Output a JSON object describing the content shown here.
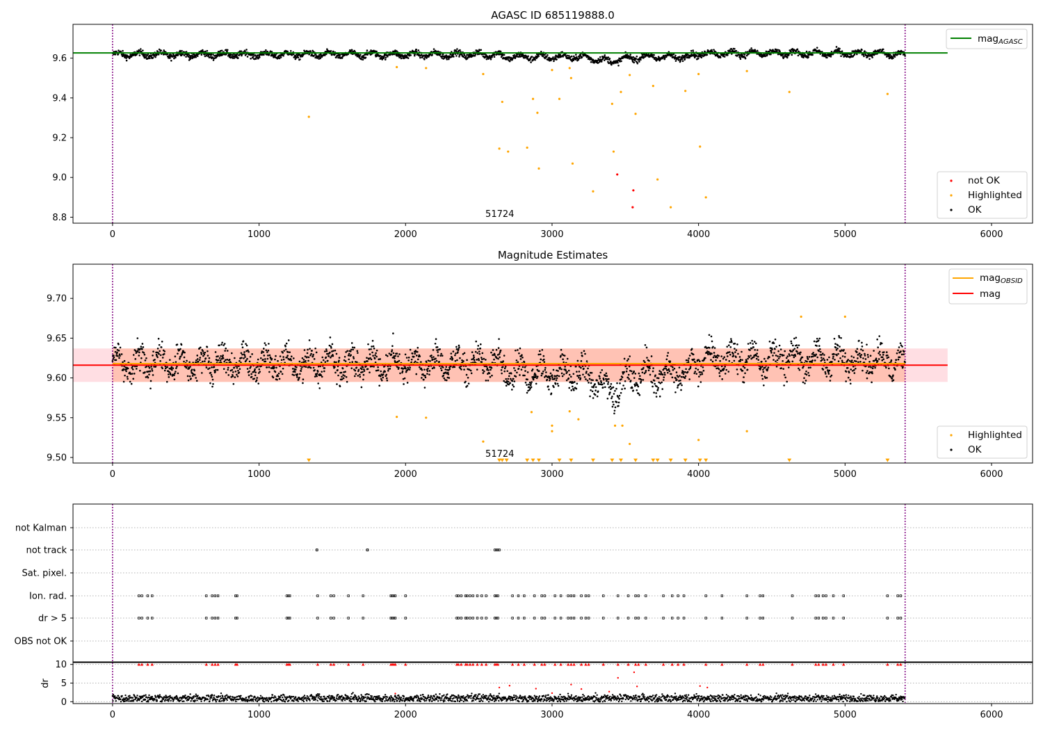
{
  "colors": {
    "ok": "#000000",
    "highlighted": "#ffa500",
    "not_ok": "#ff0000",
    "mag_agasc": "#008000",
    "mag_obsid": "#ffa500",
    "mag": "#ff0000",
    "band": "#ffb6c1",
    "band_orange": "#ffa07a",
    "vline": "#800080",
    "grid": "#b0b0b0"
  },
  "chart_data": [
    {
      "type": "scatter",
      "title": "AGASC ID 685119888.0",
      "xlim": [
        -270,
        6280
      ],
      "ylim": [
        8.77,
        9.77
      ],
      "x_ticks": [
        "0",
        "1000",
        "2000",
        "3000",
        "4000",
        "5000",
        "6000"
      ],
      "y_ticks": [
        "8.8",
        "9.0",
        "9.2",
        "9.4",
        "9.6"
      ],
      "obsid_label": "51724",
      "obsid_label_x": 2700,
      "obs_boundaries": [
        0,
        5410
      ],
      "mag_agasc": 9.626,
      "legend_lines": [
        {
          "name": "mag",
          "sub": "AGASC"
        }
      ],
      "legend_points": [
        "not OK",
        "Highlighted",
        "OK"
      ],
      "ok_band": {
        "center": 9.615,
        "spread": 0.015
      },
      "not_ok_points": [
        {
          "x": 3445,
          "y": 9.015
        },
        {
          "x": 3555,
          "y": 8.935
        },
        {
          "x": 3550,
          "y": 8.85
        }
      ],
      "highlighted_points": [
        {
          "x": 1340,
          "y": 9.305
        },
        {
          "x": 1940,
          "y": 9.555
        },
        {
          "x": 2140,
          "y": 9.55
        },
        {
          "x": 2530,
          "y": 9.52
        },
        {
          "x": 2640,
          "y": 9.145
        },
        {
          "x": 2660,
          "y": 9.38
        },
        {
          "x": 2700,
          "y": 9.13
        },
        {
          "x": 2830,
          "y": 9.15
        },
        {
          "x": 2870,
          "y": 9.395
        },
        {
          "x": 2900,
          "y": 9.325
        },
        {
          "x": 2910,
          "y": 9.045
        },
        {
          "x": 3000,
          "y": 9.54
        },
        {
          "x": 3050,
          "y": 9.395
        },
        {
          "x": 3120,
          "y": 9.55
        },
        {
          "x": 3130,
          "y": 9.5
        },
        {
          "x": 3140,
          "y": 9.07
        },
        {
          "x": 3280,
          "y": 8.93
        },
        {
          "x": 3410,
          "y": 9.37
        },
        {
          "x": 3420,
          "y": 9.13
        },
        {
          "x": 3470,
          "y": 9.43
        },
        {
          "x": 3530,
          "y": 9.515
        },
        {
          "x": 3570,
          "y": 9.32
        },
        {
          "x": 3690,
          "y": 9.46
        },
        {
          "x": 3720,
          "y": 8.99
        },
        {
          "x": 3810,
          "y": 8.85
        },
        {
          "x": 3910,
          "y": 9.435
        },
        {
          "x": 4000,
          "y": 9.52
        },
        {
          "x": 4010,
          "y": 9.155
        },
        {
          "x": 4050,
          "y": 8.9
        },
        {
          "x": 4330,
          "y": 9.535
        },
        {
          "x": 4620,
          "y": 9.43
        },
        {
          "x": 5290,
          "y": 9.42
        }
      ]
    },
    {
      "type": "scatter",
      "title": "Magnitude Estimates",
      "xlim": [
        -270,
        6280
      ],
      "ylim": [
        9.493,
        9.743
      ],
      "x_ticks": [
        "0",
        "1000",
        "2000",
        "3000",
        "4000",
        "5000",
        "6000"
      ],
      "y_ticks": [
        "9.50",
        "9.55",
        "9.60",
        "9.65",
        "9.70"
      ],
      "obsid_label": "51724",
      "obsid_label_x": 2700,
      "mag_obsid": 9.618,
      "mag": 9.616,
      "band_lo": 9.595,
      "band_hi": 9.637,
      "legend_lines": [
        {
          "name": "mag",
          "sub": "OBSID"
        },
        {
          "name": "mag",
          "sub": ""
        }
      ],
      "legend_points": [
        "Highlighted",
        "OK"
      ],
      "highlighted_points": [
        {
          "x": 1940,
          "y": 9.551
        },
        {
          "x": 2140,
          "y": 9.55
        },
        {
          "x": 2530,
          "y": 9.52
        },
        {
          "x": 2860,
          "y": 9.557
        },
        {
          "x": 3000,
          "y": 9.54
        },
        {
          "x": 3000,
          "y": 9.533
        },
        {
          "x": 3120,
          "y": 9.558
        },
        {
          "x": 3180,
          "y": 9.548
        },
        {
          "x": 3430,
          "y": 9.54
        },
        {
          "x": 3480,
          "y": 9.54
        },
        {
          "x": 3530,
          "y": 9.517
        },
        {
          "x": 4000,
          "y": 9.522
        },
        {
          "x": 4330,
          "y": 9.533
        },
        {
          "x": 4700,
          "y": 9.677
        },
        {
          "x": 5000,
          "y": 9.677
        }
      ],
      "lower_limit_x": [
        1340,
        2640,
        2660,
        2690,
        2830,
        2870,
        2910,
        3050,
        3130,
        3280,
        3410,
        3470,
        3570,
        3690,
        3720,
        3810,
        3910,
        4010,
        4050,
        4620,
        5290
      ]
    },
    {
      "type": "scatter",
      "xlim": [
        -270,
        6280
      ],
      "x_ticks": [
        "0",
        "1000",
        "2000",
        "3000",
        "4000",
        "5000",
        "6000"
      ],
      "flag_rows": [
        "not Kalman",
        "not track",
        "Sat. pixel.",
        "Ion. rad.",
        "dr > 5",
        "OBS not OK"
      ],
      "flag_points": {
        "not track": [
          1395,
          1395,
          1740,
          1740,
          2610,
          2620,
          2630,
          2640
        ],
        "ion_rad": [
          180,
          200,
          240,
          270,
          640,
          680,
          700,
          720,
          840,
          850,
          1190,
          1200,
          1210,
          1400,
          1490,
          1510,
          1610,
          1710,
          1900,
          1910,
          1920,
          1930,
          2000,
          2350,
          2360,
          2380,
          2410,
          2420,
          2440,
          2460,
          2490,
          2520,
          2550,
          2610,
          2620,
          2630,
          2730,
          2770,
          2810,
          2880,
          2930,
          2950,
          3020,
          3060,
          3110,
          3130,
          3150,
          3200,
          3230,
          3250,
          3350,
          3450,
          3520,
          3570,
          3590,
          3640,
          3760,
          3820,
          3860,
          3900,
          4050,
          4160,
          4330,
          4420,
          4440,
          4640,
          4800,
          4820,
          4850,
          4870,
          4920,
          4990,
          5290,
          5360,
          5380
        ]
      },
      "dr_ticks": [
        "0",
        "5",
        "10"
      ],
      "dr_ylabel": "dr",
      "dr_ylim": [
        -0.5,
        10.5
      ],
      "dr_outliers": [
        {
          "x": 2640,
          "y": 3.8
        },
        {
          "x": 2710,
          "y": 4.3
        },
        {
          "x": 2890,
          "y": 3.5
        },
        {
          "x": 3130,
          "y": 4.6
        },
        {
          "x": 3200,
          "y": 3.4
        },
        {
          "x": 3450,
          "y": 6.4
        },
        {
          "x": 3560,
          "y": 7.9
        },
        {
          "x": 3580,
          "y": 4.1
        },
        {
          "x": 4010,
          "y": 4.2
        },
        {
          "x": 4060,
          "y": 3.8
        },
        {
          "x": 1930,
          "y": 2.2
        },
        {
          "x": 3000,
          "y": 2.3
        },
        {
          "x": 3390,
          "y": 2.7
        }
      ]
    }
  ]
}
